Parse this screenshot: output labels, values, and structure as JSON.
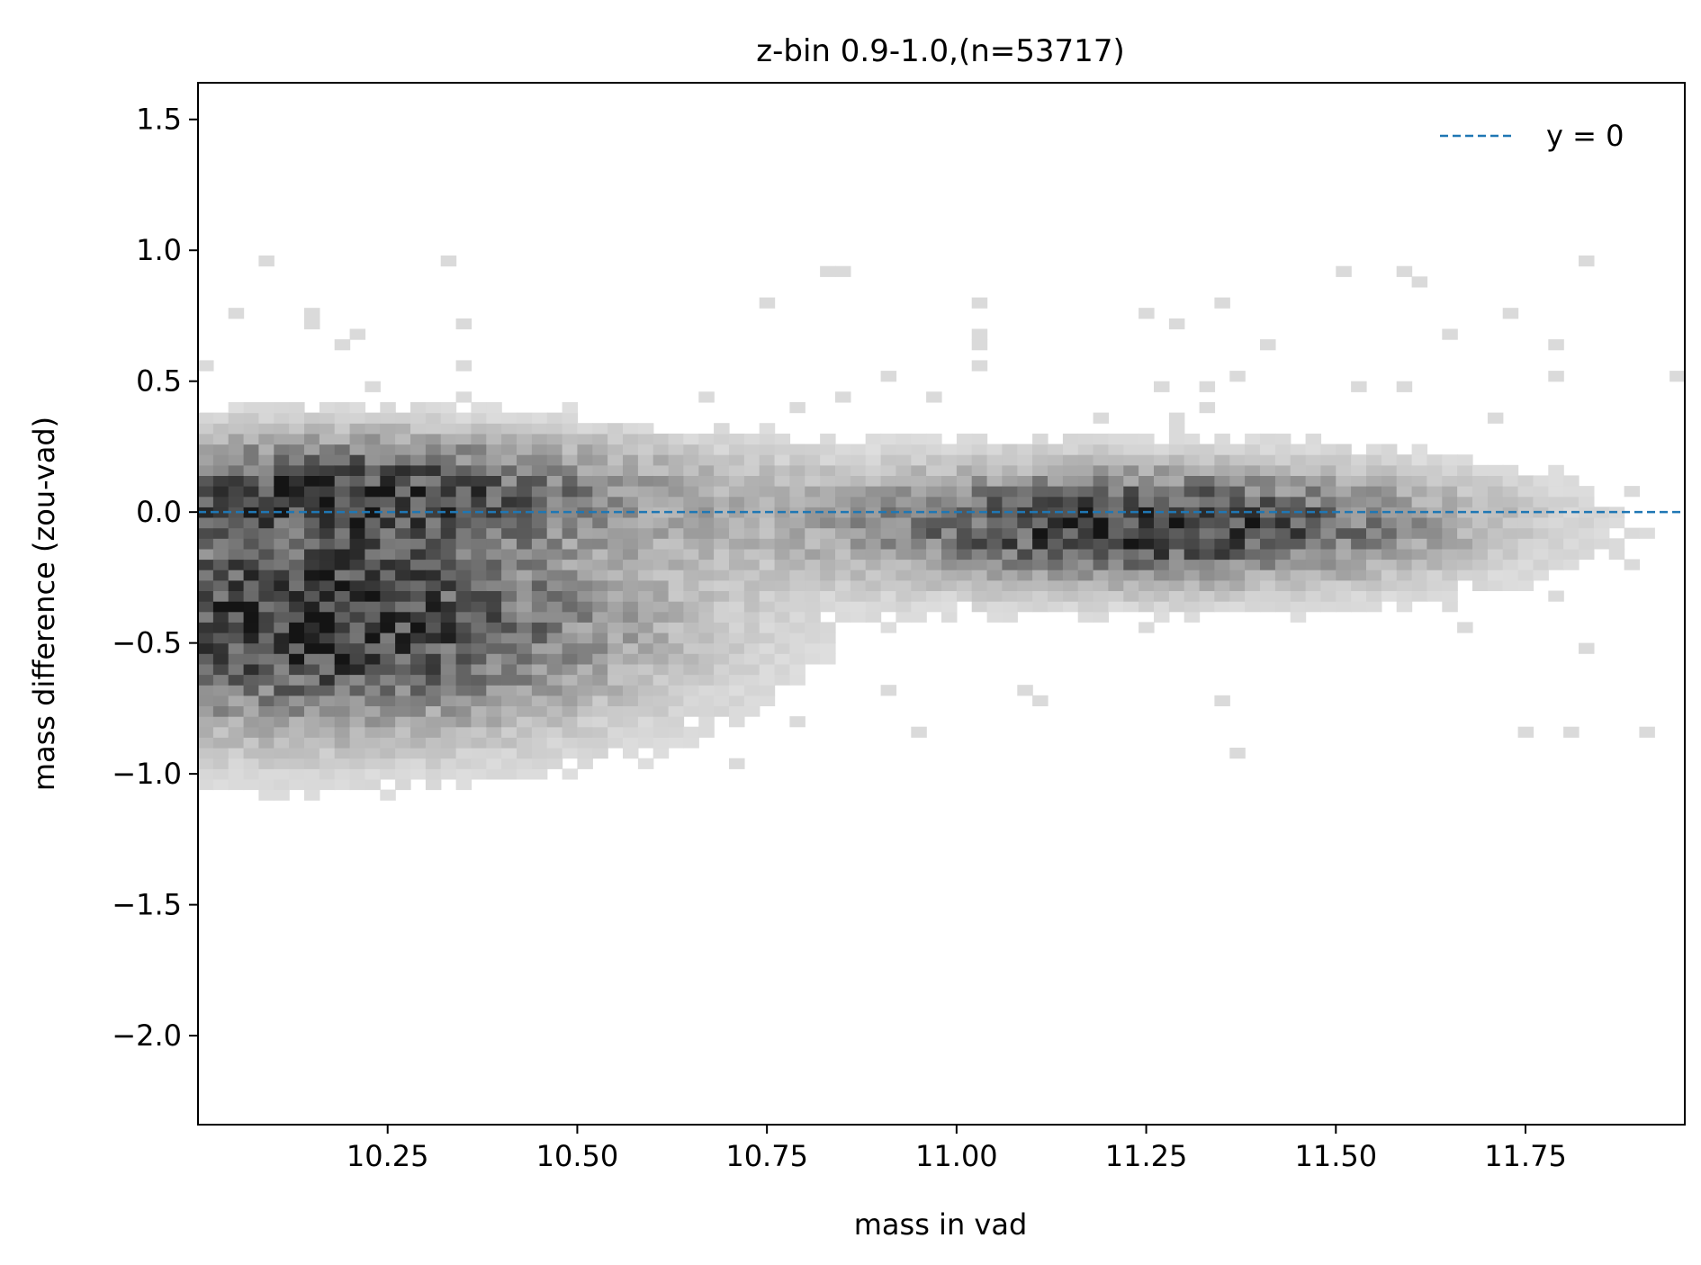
{
  "chart_data": {
    "type": "heatmap",
    "title": "z-bin 0.9-1.0,(n=53717)",
    "xlabel": "mass in vad",
    "ylabel": "mass difference (zou-vad)",
    "xlim": [
      10.0,
      11.96
    ],
    "ylim": [
      -2.34,
      1.64
    ],
    "x_ticks": [
      10.25,
      10.5,
      10.75,
      11.0,
      11.25,
      11.5,
      11.75
    ],
    "x_tick_labels": [
      "10.25",
      "10.50",
      "10.75",
      "11.00",
      "11.25",
      "11.50",
      "11.75"
    ],
    "y_ticks": [
      1.5,
      1.0,
      0.5,
      0.0,
      -0.5,
      -1.0,
      -1.5,
      -2.0
    ],
    "y_tick_labels": [
      "1.5",
      "1.0",
      "0.5",
      "0.0",
      "−0.5",
      "−1.0",
      "−1.5",
      "−2.0"
    ],
    "colormap": "Greys",
    "bin_width_x": 0.02,
    "bin_height_y": 0.04,
    "density_clusters": [
      {
        "x_center": 10.15,
        "y_center": -0.42,
        "x_spread": 0.3,
        "y_spread": 0.28,
        "peak": 1.0
      },
      {
        "x_center": 10.2,
        "y_center": 0.1,
        "x_spread": 0.3,
        "y_spread": 0.14,
        "peak": 0.75
      },
      {
        "x_center": 11.25,
        "y_center": -0.05,
        "x_spread": 0.28,
        "y_spread": 0.15,
        "peak": 1.0
      }
    ],
    "reference_line": {
      "y": 0.0,
      "color": "#1f77b4",
      "style": "dashed"
    },
    "legend": {
      "entries": [
        "y = 0"
      ],
      "placement": "upper-right"
    },
    "grid": false
  }
}
